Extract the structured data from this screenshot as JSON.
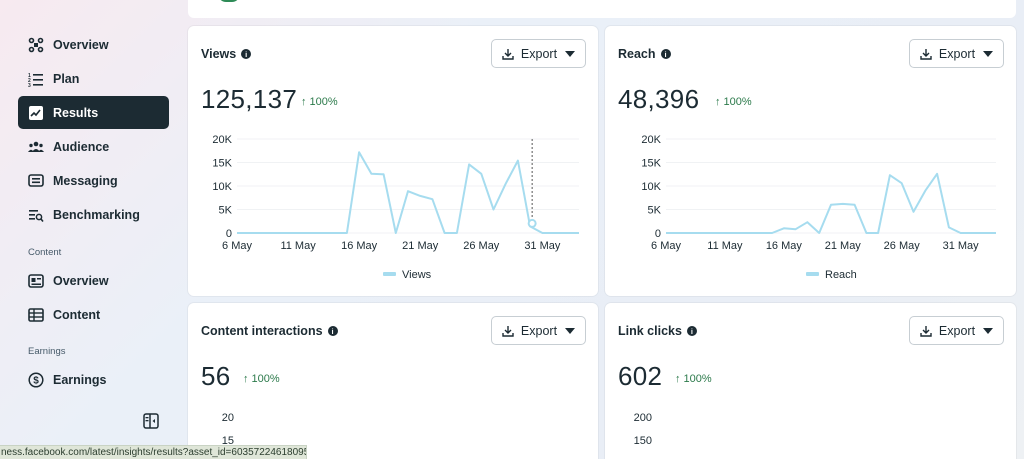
{
  "sidebar": {
    "items": [
      {
        "label": "Overview",
        "icon": "overview-icon"
      },
      {
        "label": "Plan",
        "icon": "plan-icon"
      },
      {
        "label": "Results",
        "icon": "results-icon",
        "active": true
      },
      {
        "label": "Audience",
        "icon": "audience-icon"
      },
      {
        "label": "Messaging",
        "icon": "messaging-icon"
      },
      {
        "label": "Benchmarking",
        "icon": "benchmarking-icon"
      }
    ],
    "content_section": "Content",
    "content_items": [
      {
        "label": "Overview",
        "icon": "content-overview-icon"
      },
      {
        "label": "Content",
        "icon": "content-icon"
      }
    ],
    "earnings_section": "Earnings",
    "earnings_items": [
      {
        "label": "Earnings",
        "icon": "dollar-icon"
      }
    ]
  },
  "export_label": "Export",
  "cards": {
    "views": {
      "title": "Views",
      "value": "125,137",
      "delta": "↑ 100%",
      "legend": "Views"
    },
    "reach": {
      "title": "Reach",
      "value": "48,396",
      "delta": "↑ 100%",
      "legend": "Reach"
    },
    "interactions": {
      "title": "Content interactions",
      "value": "56",
      "delta": "↑ 100%"
    },
    "link_clicks": {
      "title": "Link clicks",
      "value": "602",
      "delta": "↑ 100%"
    }
  },
  "status_url": "ness.facebook.com/latest/insights/results?asset_id=603572246180950",
  "colors": {
    "line": "#a6dcef",
    "active_nav": "#1c2b33",
    "positive": "#2c7a4b"
  },
  "chart_data": [
    {
      "type": "line",
      "x_tick_labels": [
        "6 May",
        "11 May",
        "16 May",
        "21 May",
        "26 May",
        "31 May"
      ],
      "y_tick_labels": [
        "0",
        "5K",
        "10K",
        "15K",
        "20K"
      ],
      "ylim": [
        0,
        20000
      ],
      "series": [
        {
          "name": "Views",
          "values": [
            0,
            0,
            0,
            0,
            0,
            0,
            0,
            0,
            0,
            0,
            17200,
            12600,
            12500,
            0,
            8900,
            7900,
            7200,
            0,
            0,
            14600,
            12600,
            5000,
            10500,
            15400,
            1400,
            0,
            0,
            0,
            0
          ]
        }
      ],
      "legend_position": "bottom"
    },
    {
      "type": "line",
      "x_tick_labels": [
        "6 May",
        "11 May",
        "16 May",
        "21 May",
        "26 May",
        "31 May"
      ],
      "y_tick_labels": [
        "0",
        "5K",
        "10K",
        "15K",
        "20K"
      ],
      "ylim": [
        0,
        20000
      ],
      "series": [
        {
          "name": "Reach",
          "values": [
            0,
            0,
            0,
            0,
            0,
            0,
            0,
            0,
            0,
            0,
            1000,
            800,
            2300,
            0,
            6000,
            6200,
            6000,
            0,
            0,
            12300,
            10600,
            4500,
            9000,
            12600,
            1200,
            0,
            0,
            0,
            0
          ]
        }
      ],
      "legend_position": "bottom"
    },
    {
      "type": "line",
      "y_tick_labels": [
        "15",
        "20"
      ],
      "series": []
    },
    {
      "type": "line",
      "y_tick_labels": [
        "150",
        "200"
      ],
      "series": []
    }
  ]
}
